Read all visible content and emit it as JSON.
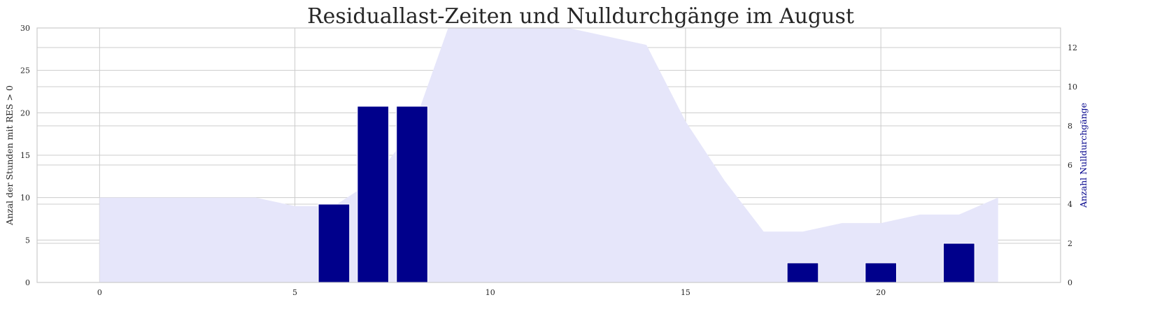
{
  "chart_data": {
    "type": "bar",
    "title": "Residuallast-Zeiten und Nulldurchgänge im August",
    "xlabel": "",
    "xlim": [
      -1.6,
      24.6
    ],
    "x_ticks": [
      0,
      5,
      10,
      15,
      20
    ],
    "x_tick_labels": [
      "0",
      "5",
      "10",
      "15",
      "20"
    ],
    "grid": true,
    "legend": "none",
    "axes": {
      "left": {
        "label": "Anzal der Stunden mit RES > 0",
        "ylim": [
          0,
          30
        ],
        "ticks": [
          0,
          5,
          10,
          15,
          20,
          25,
          30
        ],
        "tick_labels": [
          "0",
          "5",
          "10",
          "15",
          "20",
          "25",
          "30"
        ]
      },
      "right": {
        "label": "Anzahl Nulldurchgänge",
        "ylim": [
          0,
          13
        ],
        "ticks": [
          0,
          2,
          4,
          6,
          8,
          10,
          12
        ],
        "tick_labels": [
          "0",
          "2",
          "4",
          "6",
          "8",
          "10",
          "12"
        ]
      }
    },
    "series": [
      {
        "type": "area",
        "axis": "left",
        "color": "#e6e6fa",
        "x": [
          0,
          1,
          2,
          3,
          4,
          5,
          6,
          7,
          8,
          9,
          10,
          11,
          12,
          13,
          14,
          15,
          16,
          17,
          18,
          19,
          20,
          21,
          22,
          23
        ],
        "values": [
          10,
          10,
          10,
          10,
          10,
          9,
          9,
          12,
          18,
          31,
          31,
          31,
          30,
          29,
          28,
          19,
          12,
          6,
          6,
          7,
          7,
          8,
          8,
          10
        ]
      },
      {
        "type": "bar",
        "axis": "right",
        "color": "#00008b",
        "x": [
          0,
          1,
          2,
          3,
          4,
          5,
          6,
          7,
          8,
          9,
          10,
          11,
          12,
          13,
          14,
          15,
          16,
          17,
          18,
          19,
          20,
          21,
          22,
          23
        ],
        "values": [
          0,
          0,
          0,
          0,
          0,
          0,
          4,
          9,
          9,
          0,
          0,
          0,
          0,
          0,
          0,
          0,
          0,
          0,
          1,
          0,
          1,
          0,
          2,
          0
        ]
      }
    ]
  }
}
